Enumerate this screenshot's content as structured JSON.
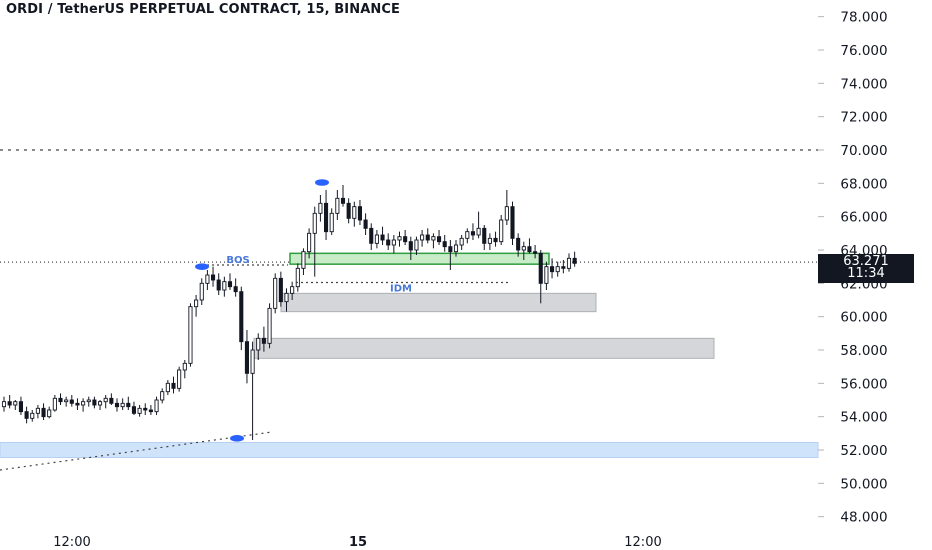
{
  "header": {
    "title": "ORDI / TetherUS PERPETUAL CONTRACT, 15, BINANCE"
  },
  "price_tag": {
    "price": "63.271",
    "countdown": "11:34"
  },
  "colors": {
    "candle": "#131722",
    "accent_blue": "#2962ff",
    "label_blue": "#4878d8",
    "demand_zone": "#cfe3fb",
    "supply_zone": "#d5d6da",
    "ob_zone": "#c8ecc8",
    "ob_border": "#2e9e3e",
    "axis_text": "#131722",
    "dots": "#444444"
  },
  "chart_data": {
    "type": "candlestick",
    "title": "ORDI / TetherUS PERPETUAL CONTRACT, 15, BINANCE",
    "y_axis": {
      "ticks": [
        "48.000",
        "50.000",
        "52.000",
        "54.000",
        "56.000",
        "58.000",
        "60.000",
        "62.000",
        "64.000",
        "66.000",
        "68.000",
        "70.000",
        "72.000",
        "74.000",
        "76.000",
        "78.000"
      ],
      "range": [
        47.5,
        78.8
      ]
    },
    "x_axis": {
      "ticks": [
        "12:00",
        "15",
        "12:00"
      ]
    },
    "current_price": 63.271,
    "horizontal_lines": [
      {
        "price": 70.0,
        "style": "dotted"
      },
      {
        "price": 63.271,
        "style": "dotted"
      }
    ],
    "zones": [
      {
        "name": "demand",
        "low": 51.55,
        "high": 52.45
      },
      {
        "name": "supply-1",
        "low": 60.3,
        "high": 61.4
      },
      {
        "name": "supply-2",
        "low": 57.5,
        "high": 58.7
      },
      {
        "name": "order-block",
        "low": 63.15,
        "high": 63.8
      }
    ],
    "annotations": [
      {
        "text": "BOS",
        "price": 63.1
      },
      {
        "text": "IDM",
        "price": 62.05
      }
    ],
    "candles": [
      [
        54.6,
        55.2,
        54.3,
        54.9
      ],
      [
        54.9,
        55.3,
        54.5,
        54.7
      ],
      [
        54.7,
        55.0,
        54.4,
        54.9
      ],
      [
        54.9,
        55.2,
        54.1,
        54.3
      ],
      [
        54.3,
        54.6,
        53.6,
        53.9
      ],
      [
        53.9,
        54.4,
        53.7,
        54.2
      ],
      [
        54.2,
        54.7,
        53.9,
        54.5
      ],
      [
        54.5,
        54.8,
        53.8,
        54.0
      ],
      [
        54.0,
        54.6,
        53.9,
        54.4
      ],
      [
        54.4,
        55.3,
        54.3,
        55.1
      ],
      [
        55.1,
        55.4,
        54.7,
        54.9
      ],
      [
        54.9,
        55.2,
        54.6,
        55.0
      ],
      [
        55.0,
        55.3,
        54.6,
        54.8
      ],
      [
        54.8,
        55.1,
        54.4,
        54.7
      ],
      [
        54.7,
        55.1,
        54.3,
        54.9
      ],
      [
        54.9,
        55.2,
        54.6,
        55.0
      ],
      [
        55.0,
        55.2,
        54.5,
        54.7
      ],
      [
        54.7,
        55.0,
        54.4,
        54.9
      ],
      [
        54.9,
        55.3,
        54.5,
        55.1
      ],
      [
        55.1,
        55.4,
        54.7,
        54.8
      ],
      [
        54.8,
        55.1,
        54.3,
        54.6
      ],
      [
        54.6,
        55.1,
        54.4,
        54.8
      ],
      [
        54.8,
        55.2,
        54.4,
        54.6
      ],
      [
        54.6,
        54.9,
        54.1,
        54.2
      ],
      [
        54.2,
        54.7,
        54.0,
        54.5
      ],
      [
        54.5,
        54.8,
        54.1,
        54.4
      ],
      [
        54.4,
        54.7,
        54.1,
        54.3
      ],
      [
        54.3,
        55.2,
        54.1,
        55.0
      ],
      [
        55.0,
        55.7,
        54.8,
        55.5
      ],
      [
        55.5,
        56.2,
        55.3,
        56.0
      ],
      [
        56.0,
        56.4,
        55.4,
        55.7
      ],
      [
        55.7,
        57.0,
        55.5,
        56.8
      ],
      [
        56.8,
        57.4,
        56.3,
        57.2
      ],
      [
        57.2,
        60.8,
        57.0,
        60.6
      ],
      [
        60.6,
        61.3,
        60.0,
        61.0
      ],
      [
        61.0,
        62.3,
        60.7,
        62.0
      ],
      [
        62.0,
        62.8,
        61.6,
        62.5
      ],
      [
        62.5,
        63.0,
        61.8,
        62.2
      ],
      [
        62.2,
        62.6,
        61.3,
        61.6
      ],
      [
        61.6,
        62.4,
        61.2,
        62.1
      ],
      [
        62.1,
        62.6,
        61.6,
        61.8
      ],
      [
        61.8,
        62.3,
        61.2,
        61.5
      ],
      [
        61.5,
        61.8,
        58.0,
        58.5
      ],
      [
        58.5,
        59.2,
        56.0,
        56.6
      ],
      [
        56.6,
        58.5,
        52.6,
        58.0
      ],
      [
        58.0,
        59.0,
        57.4,
        58.7
      ],
      [
        58.7,
        59.4,
        57.9,
        58.4
      ],
      [
        58.4,
        60.8,
        58.1,
        60.5
      ],
      [
        60.5,
        62.6,
        60.2,
        62.3
      ],
      [
        62.3,
        62.7,
        60.6,
        60.9
      ],
      [
        60.9,
        61.7,
        60.3,
        61.4
      ],
      [
        61.4,
        62.1,
        61.0,
        61.8
      ],
      [
        61.8,
        63.2,
        61.5,
        62.9
      ],
      [
        62.9,
        64.1,
        62.5,
        63.9
      ],
      [
        63.9,
        65.3,
        63.5,
        65.0
      ],
      [
        65.0,
        66.6,
        62.4,
        66.2
      ],
      [
        66.2,
        67.3,
        65.7,
        66.8
      ],
      [
        66.8,
        67.6,
        64.6,
        65.1
      ],
      [
        65.1,
        66.5,
        64.9,
        66.2
      ],
      [
        66.2,
        67.6,
        65.8,
        67.1
      ],
      [
        67.1,
        67.9,
        66.6,
        66.8
      ],
      [
        66.8,
        67.1,
        65.6,
        65.9
      ],
      [
        65.9,
        66.9,
        65.4,
        66.6
      ],
      [
        66.6,
        67.0,
        65.5,
        65.8
      ],
      [
        65.8,
        66.2,
        64.9,
        65.3
      ],
      [
        65.3,
        65.6,
        64.0,
        64.4
      ],
      [
        64.4,
        65.2,
        64.1,
        64.9
      ],
      [
        64.9,
        65.4,
        64.3,
        64.6
      ],
      [
        64.6,
        65.0,
        64.0,
        64.3
      ],
      [
        64.3,
        64.9,
        63.8,
        64.6
      ],
      [
        64.6,
        65.1,
        64.2,
        64.8
      ],
      [
        64.8,
        65.2,
        64.3,
        64.5
      ],
      [
        64.5,
        64.8,
        63.4,
        64.0
      ],
      [
        64.0,
        64.8,
        63.7,
        64.6
      ],
      [
        64.6,
        65.2,
        64.2,
        64.9
      ],
      [
        64.9,
        65.3,
        64.4,
        64.6
      ],
      [
        64.6,
        65.0,
        64.1,
        64.8
      ],
      [
        64.8,
        65.2,
        64.3,
        64.5
      ],
      [
        64.5,
        64.9,
        63.9,
        64.2
      ],
      [
        64.2,
        64.6,
        62.8,
        63.9
      ],
      [
        63.9,
        64.6,
        63.6,
        64.3
      ],
      [
        64.3,
        64.9,
        64.0,
        64.7
      ],
      [
        64.7,
        65.3,
        64.4,
        65.1
      ],
      [
        65.1,
        65.6,
        64.6,
        64.9
      ],
      [
        64.9,
        66.3,
        64.7,
        65.3
      ],
      [
        65.3,
        65.5,
        64.0,
        64.4
      ],
      [
        64.4,
        65.0,
        64.0,
        64.7
      ],
      [
        64.7,
        65.1,
        64.2,
        64.5
      ],
      [
        64.5,
        66.1,
        64.3,
        65.8
      ],
      [
        65.8,
        67.6,
        65.5,
        66.6
      ],
      [
        66.6,
        66.9,
        64.3,
        64.7
      ],
      [
        64.7,
        65.0,
        63.6,
        64.0
      ],
      [
        64.0,
        64.5,
        63.4,
        64.2
      ],
      [
        64.2,
        64.7,
        63.8,
        63.9
      ],
      [
        63.9,
        64.3,
        63.5,
        63.8
      ],
      [
        63.8,
        64.0,
        60.8,
        62.0
      ],
      [
        62.0,
        63.3,
        61.6,
        63.0
      ],
      [
        63.0,
        63.5,
        62.3,
        62.7
      ],
      [
        62.7,
        63.3,
        62.4,
        63.0
      ],
      [
        63.0,
        63.4,
        62.6,
        62.9
      ],
      [
        62.9,
        63.8,
        62.7,
        63.5
      ],
      [
        63.5,
        63.9,
        63.0,
        63.2
      ]
    ]
  }
}
